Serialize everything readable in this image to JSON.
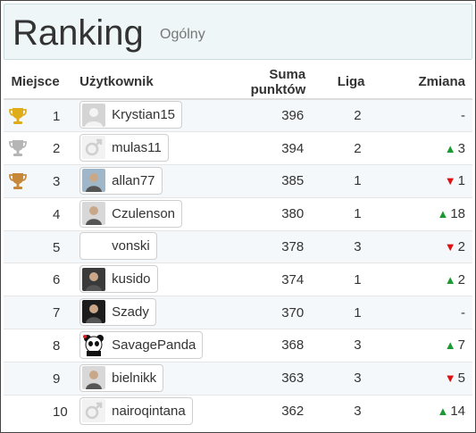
{
  "header": {
    "title": "Ranking",
    "subtitle": "Ogólny"
  },
  "columns": {
    "position": "Miejsce",
    "user": "Użytkownik",
    "points": "Suma punktów",
    "league": "Liga",
    "change": "Zmiana"
  },
  "colors": {
    "gold": "#e0ad1a",
    "silver": "#b5b5b5",
    "bronze": "#c7883a",
    "up": "#1a9a30",
    "down": "#dd1111"
  },
  "rows": [
    {
      "position": "1",
      "trophy": "gold-trophy-icon",
      "user": "Krystian15",
      "avatar": "default-avatar-icon",
      "points": "396",
      "league": "2",
      "change_dir": "none",
      "change": "-"
    },
    {
      "position": "2",
      "trophy": "silver-trophy-icon",
      "user": "mulas11",
      "avatar": "male-symbol-icon",
      "points": "394",
      "league": "2",
      "change_dir": "up",
      "change": "3"
    },
    {
      "position": "3",
      "trophy": "bronze-trophy-icon",
      "user": "allan77",
      "avatar": "photo-avatar-icon",
      "points": "385",
      "league": "1",
      "change_dir": "down",
      "change": "1"
    },
    {
      "position": "4",
      "trophy": "",
      "user": "Czulenson",
      "avatar": "photo-avatar-icon",
      "points": "380",
      "league": "1",
      "change_dir": "up",
      "change": "18"
    },
    {
      "position": "5",
      "trophy": "",
      "user": "vonski",
      "avatar": "",
      "points": "378",
      "league": "3",
      "change_dir": "down",
      "change": "2"
    },
    {
      "position": "6",
      "trophy": "",
      "user": "kusido",
      "avatar": "photo-avatar-icon",
      "points": "374",
      "league": "1",
      "change_dir": "up",
      "change": "2"
    },
    {
      "position": "7",
      "trophy": "",
      "user": "Szady",
      "avatar": "photo-avatar-icon",
      "points": "370",
      "league": "1",
      "change_dir": "none",
      "change": "-"
    },
    {
      "position": "8",
      "trophy": "",
      "user": "SavagePanda",
      "avatar": "panda-avatar-icon",
      "points": "368",
      "league": "3",
      "change_dir": "up",
      "change": "7"
    },
    {
      "position": "9",
      "trophy": "",
      "user": "bielnikk",
      "avatar": "photo-avatar-icon",
      "points": "363",
      "league": "3",
      "change_dir": "down",
      "change": "5"
    },
    {
      "position": "10",
      "trophy": "",
      "user": "nairoqintana",
      "avatar": "male-symbol-icon",
      "points": "362",
      "league": "3",
      "change_dir": "up",
      "change": "14"
    }
  ]
}
